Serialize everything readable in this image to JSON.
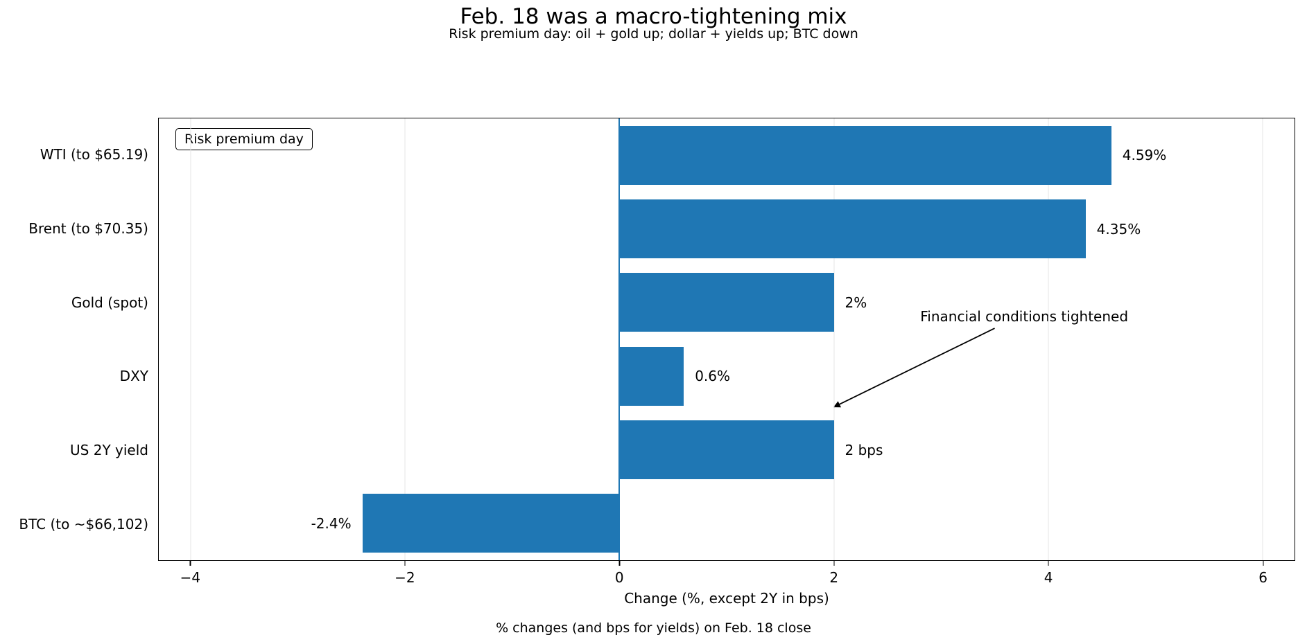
{
  "chart_data": {
    "type": "bar",
    "orientation": "horizontal",
    "title": "Feb. 18 was a macro-tightening mix",
    "subtitle": "Risk premium day: oil + gold up; dollar + yields up; BTC down",
    "categories": [
      "WTI (to $65.19)",
      "Brent (to $70.35)",
      "Gold (spot)",
      "DXY",
      "US 2Y yield",
      "BTC (to ~$66,102)"
    ],
    "values": [
      4.59,
      4.35,
      2,
      0.6,
      2,
      -2.4
    ],
    "value_labels": [
      "4.59%",
      "4.35%",
      "2%",
      "0.6%",
      "2 bps",
      "-2.4%"
    ],
    "xlabel": "Change (%, except 2Y in bps)",
    "footer": "% changes (and bps for yields) on Feb. 18 close",
    "legend_label": "Risk premium day",
    "annotation": "Financial conditions tightened",
    "xticks": [
      -4,
      -2,
      0,
      2,
      4,
      6
    ],
    "xlim": [
      -4.3,
      6.3
    ],
    "bar_color": "#1f77b4",
    "grid": true,
    "zero_line_color": "#1f77b4"
  }
}
